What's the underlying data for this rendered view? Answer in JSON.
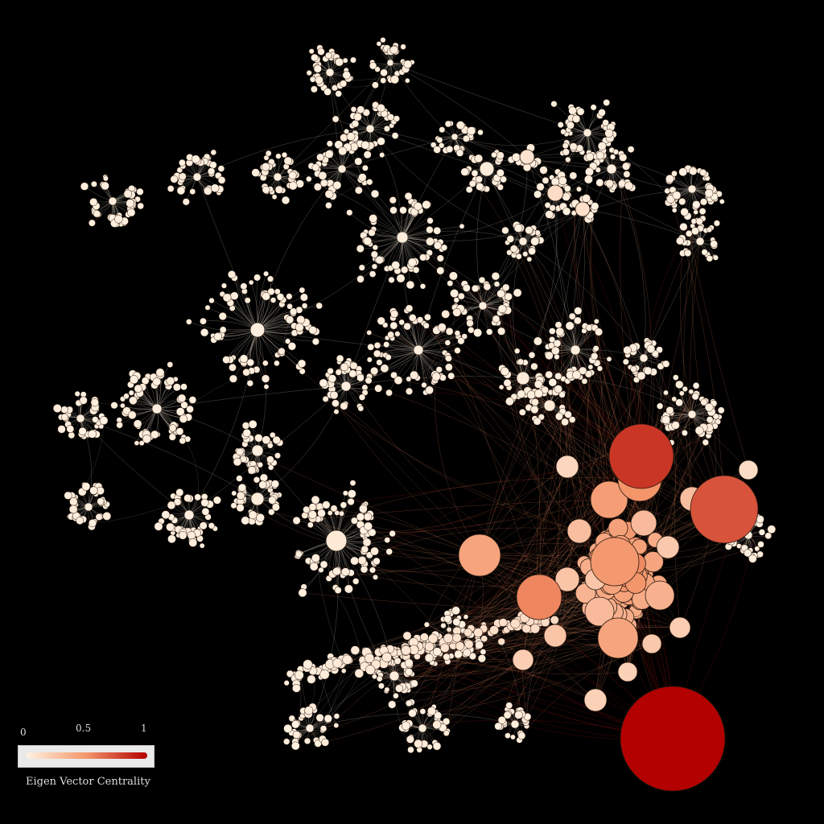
{
  "legend": {
    "title": "Eigen Vector Centrality",
    "tick_min": "0",
    "tick_mid": "0.5",
    "tick_max": "1"
  },
  "colors": {
    "background": "#000000",
    "low": "#fff2e2",
    "mid": "#f4956a",
    "high": "#b30000",
    "edge": "#e8dccb",
    "node_stroke": "#2a1a10"
  },
  "network": {
    "node_count": 1200,
    "hub_count": 46,
    "top_centrality": 1.0
  }
}
